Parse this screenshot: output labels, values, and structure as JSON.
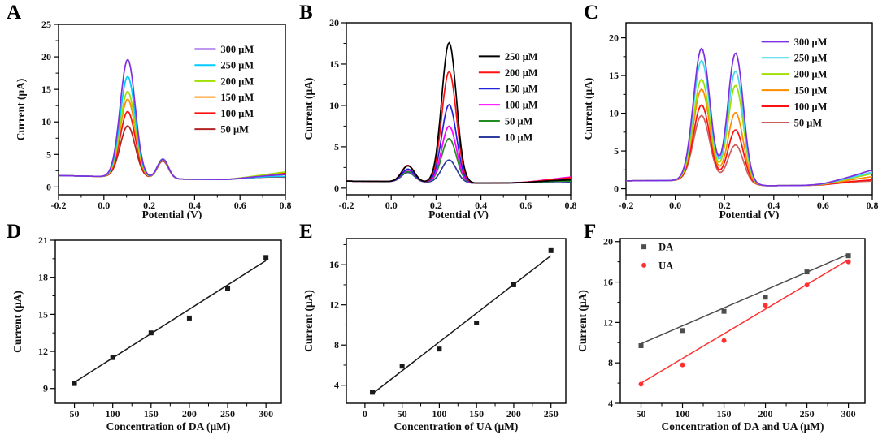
{
  "figure": {
    "background": "#ffffff"
  },
  "chart_data": [
    {
      "panel": "A",
      "type": "line",
      "xlabel": "Potential (V)",
      "ylabel": "Current (μA)",
      "xlim": [
        -0.2,
        0.8
      ],
      "ylim": [
        -1.2,
        25
      ],
      "xticks": [
        -0.2,
        0.0,
        0.2,
        0.4,
        0.6,
        0.8
      ],
      "xtick_labels": [
        "-0.2",
        "0.0",
        "0.2",
        "0.4",
        "0.6",
        "0.8"
      ],
      "yticks": [
        0,
        5,
        10,
        15,
        20,
        25
      ],
      "ytick_labels": [
        "0",
        "5",
        "10",
        "15",
        "20",
        "25"
      ],
      "grid": false,
      "legend": {
        "position": "upper-right",
        "fx": 0.6,
        "fy": 0.145,
        "dy": 0.094,
        "swatch": "line",
        "len": 26
      },
      "baseline": [
        [
          -0.2,
          1.75
        ],
        [
          0.0,
          1.6
        ],
        [
          0.34,
          1.2
        ],
        [
          0.55,
          1.15
        ],
        [
          0.8,
          1.7
        ]
      ],
      "series": [
        {
          "name": "300 μM",
          "color": "#7E2FE0",
          "right_end": 1.9,
          "peaks": [
            {
              "x": 0.105,
              "y": 19.6,
              "w": 0.047
            },
            {
              "x": 0.26,
              "y": 4.25,
              "w": 0.034
            }
          ]
        },
        {
          "name": "250 μM",
          "color": "#00CCFF",
          "right_end": 1.6,
          "peaks": [
            {
              "x": 0.105,
              "y": 17.0,
              "w": 0.047
            },
            {
              "x": 0.26,
              "y": 4.3,
              "w": 0.034
            }
          ]
        },
        {
          "name": "200 μM",
          "color": "#9FE000",
          "right_end": 2.3,
          "peaks": [
            {
              "x": 0.105,
              "y": 14.7,
              "w": 0.047
            },
            {
              "x": 0.26,
              "y": 4.2,
              "w": 0.034
            }
          ]
        },
        {
          "name": "150 μM",
          "color": "#FF8C00",
          "right_end": 1.9,
          "peaks": [
            {
              "x": 0.105,
              "y": 13.5,
              "w": 0.047
            },
            {
              "x": 0.26,
              "y": 4.15,
              "w": 0.034
            }
          ]
        },
        {
          "name": "100 μM",
          "color": "#FF1010",
          "right_end": 2.1,
          "peaks": [
            {
              "x": 0.105,
              "y": 11.6,
              "w": 0.047
            },
            {
              "x": 0.26,
              "y": 4.3,
              "w": 0.034
            }
          ]
        },
        {
          "name": "50 μM",
          "color": "#B22222",
          "right_end": 1.5,
          "peaks": [
            {
              "x": 0.105,
              "y": 9.4,
              "w": 0.047
            },
            {
              "x": 0.26,
              "y": 4.0,
              "w": 0.034
            }
          ]
        }
      ]
    },
    {
      "panel": "B",
      "type": "line",
      "xlabel": "Potential (V)",
      "ylabel": "Current (μA)",
      "xlim": [
        -0.2,
        0.8
      ],
      "ylim": [
        -0.8,
        20
      ],
      "xticks": [
        -0.2,
        0.0,
        0.2,
        0.4,
        0.6,
        0.8
      ],
      "xtick_labels": [
        "-0.2",
        "0.0",
        "0.2",
        "0.4",
        "0.6",
        "0.8"
      ],
      "yticks": [
        0,
        5,
        10,
        15,
        20
      ],
      "ytick_labels": [
        "0",
        "5",
        "10",
        "15",
        "20"
      ],
      "grid": false,
      "legend": {
        "position": "upper-right",
        "fx": 0.59,
        "fy": 0.195,
        "dy": 0.094,
        "swatch": "line",
        "len": 26
      },
      "baseline": [
        [
          -0.2,
          0.85
        ],
        [
          0.0,
          0.8
        ],
        [
          0.36,
          0.6
        ],
        [
          0.6,
          0.65
        ],
        [
          0.8,
          0.9
        ]
      ],
      "series": [
        {
          "name": "250 μM",
          "color": "#000000",
          "right_end": 1.0,
          "peaks": [
            {
              "x": 0.075,
              "y": 2.7,
              "w": 0.04
            },
            {
              "x": 0.258,
              "y": 17.6,
              "w": 0.046
            }
          ]
        },
        {
          "name": "200 μM",
          "color": "#FF1010",
          "right_end": 1.25,
          "peaks": [
            {
              "x": 0.075,
              "y": 2.75,
              "w": 0.04
            },
            {
              "x": 0.258,
              "y": 14.1,
              "w": 0.046
            }
          ]
        },
        {
          "name": "150 μM",
          "color": "#2222DD",
          "right_end": 1.05,
          "peaks": [
            {
              "x": 0.075,
              "y": 2.3,
              "w": 0.04
            },
            {
              "x": 0.258,
              "y": 10.1,
              "w": 0.046
            }
          ]
        },
        {
          "name": "100 μM",
          "color": "#FF00FF",
          "right_end": 1.35,
          "peaks": [
            {
              "x": 0.075,
              "y": 2.2,
              "w": 0.04
            },
            {
              "x": 0.258,
              "y": 7.5,
              "w": 0.046
            }
          ]
        },
        {
          "name": "50 μM",
          "color": "#228B22",
          "right_end": 0.85,
          "peaks": [
            {
              "x": 0.075,
              "y": 2.0,
              "w": 0.04
            },
            {
              "x": 0.258,
              "y": 6.0,
              "w": 0.046
            }
          ]
        },
        {
          "name": "10 μM",
          "color": "#2F3D9E",
          "right_end": 0.75,
          "peaks": [
            {
              "x": 0.075,
              "y": 1.9,
              "w": 0.04
            },
            {
              "x": 0.258,
              "y": 3.4,
              "w": 0.046
            }
          ]
        }
      ]
    },
    {
      "panel": "C",
      "type": "line",
      "xlabel": "Potential (V)",
      "ylabel": "Current (μA)",
      "xlim": [
        -0.2,
        0.8
      ],
      "ylim": [
        -0.8,
        22
      ],
      "xticks": [
        -0.2,
        0.0,
        0.2,
        0.4,
        0.6,
        0.8
      ],
      "xtick_labels": [
        "-0.2",
        "0.0",
        "0.2",
        "0.4",
        "0.6",
        "0.8"
      ],
      "yticks": [
        0,
        5,
        10,
        15,
        20
      ],
      "ytick_labels": [
        "0",
        "5",
        "10",
        "15",
        "20"
      ],
      "grid": false,
      "legend": {
        "position": "upper-right",
        "fx": 0.55,
        "fy": 0.11,
        "dy": 0.094,
        "swatch": "line",
        "len": 34
      },
      "baseline": [
        [
          -0.2,
          1.05
        ],
        [
          0.05,
          1.1
        ],
        [
          0.37,
          0.4
        ],
        [
          0.6,
          0.45
        ],
        [
          0.8,
          0.95
        ]
      ],
      "series": [
        {
          "name": "300 μM",
          "color": "#7E2FE0",
          "right_end": 2.5,
          "peaks": [
            {
              "x": 0.107,
              "y": 18.6,
              "w": 0.047
            },
            {
              "x": 0.245,
              "y": 18.0,
              "w": 0.044
            }
          ]
        },
        {
          "name": "250 μM",
          "color": "#40D8F0",
          "right_end": 2.2,
          "peaks": [
            {
              "x": 0.107,
              "y": 17.0,
              "w": 0.047
            },
            {
              "x": 0.245,
              "y": 15.6,
              "w": 0.044
            }
          ]
        },
        {
          "name": "200 μM",
          "color": "#9FE000",
          "right_end": 2.0,
          "peaks": [
            {
              "x": 0.107,
              "y": 14.5,
              "w": 0.047
            },
            {
              "x": 0.245,
              "y": 13.7,
              "w": 0.044
            }
          ]
        },
        {
          "name": "150 μM",
          "color": "#FF8C00",
          "right_end": 1.6,
          "peaks": [
            {
              "x": 0.107,
              "y": 13.2,
              "w": 0.047
            },
            {
              "x": 0.245,
              "y": 10.1,
              "w": 0.044
            }
          ]
        },
        {
          "name": "100 μM",
          "color": "#FF1010",
          "right_end": 1.15,
          "peaks": [
            {
              "x": 0.107,
              "y": 11.1,
              "w": 0.047
            },
            {
              "x": 0.245,
              "y": 7.8,
              "w": 0.044
            }
          ]
        },
        {
          "name": "50 μM",
          "color": "#CD5C5C",
          "right_end": 1.0,
          "peaks": [
            {
              "x": 0.107,
              "y": 9.7,
              "w": 0.047
            },
            {
              "x": 0.245,
              "y": 5.8,
              "w": 0.044
            }
          ]
        }
      ]
    },
    {
      "panel": "D",
      "type": "scatter",
      "xlabel": "Concentration of DA (μM)",
      "ylabel": "Current (μA)",
      "xlim": [
        25,
        320
      ],
      "ylim": [
        7.8,
        21
      ],
      "xticks": [
        50,
        100,
        150,
        200,
        250,
        300
      ],
      "xtick_labels": [
        "50",
        "100",
        "150",
        "200",
        "250",
        "300"
      ],
      "yticks": [
        9,
        12,
        15,
        18,
        21
      ],
      "ytick_labels": [
        "9",
        "12",
        "15",
        "18",
        "21"
      ],
      "grid": false,
      "legend": null,
      "series": [
        {
          "name": "DA",
          "color": "#1a1a1a",
          "marker": "square",
          "points": [
            [
              50,
              9.4
            ],
            [
              100,
              11.5
            ],
            [
              150,
              13.5
            ],
            [
              200,
              14.7
            ],
            [
              250,
              17.1
            ],
            [
              300,
              19.6
            ]
          ],
          "fit": [
            [
              50,
              9.5
            ],
            [
              300,
              19.35
            ]
          ]
        }
      ]
    },
    {
      "panel": "E",
      "type": "scatter",
      "xlabel": "Concentration of UA (μM)",
      "ylabel": "Current (μA)",
      "xlim": [
        -25,
        270
      ],
      "ylim": [
        2.2,
        18.6
      ],
      "xticks": [
        0,
        50,
        100,
        150,
        200,
        250
      ],
      "xtick_labels": [
        "0",
        "50",
        "100",
        "150",
        "200",
        "250"
      ],
      "yticks": [
        4,
        8,
        12,
        16
      ],
      "ytick_labels": [
        "4",
        "8",
        "12",
        "16"
      ],
      "grid": false,
      "legend": null,
      "series": [
        {
          "name": "UA",
          "color": "#1a1a1a",
          "marker": "square",
          "points": [
            [
              10,
              3.3
            ],
            [
              50,
              5.9
            ],
            [
              100,
              7.6
            ],
            [
              150,
              10.2
            ],
            [
              200,
              14.0
            ],
            [
              250,
              17.4
            ]
          ],
          "fit": [
            [
              10,
              3.15
            ],
            [
              250,
              16.9
            ]
          ]
        }
      ]
    },
    {
      "panel": "F",
      "type": "scatter",
      "xlabel": "Concentration of DA and UA (μM)",
      "ylabel": "Current (μA)",
      "xlim": [
        25,
        320
      ],
      "ylim": [
        4,
        20.3
      ],
      "xticks": [
        50,
        100,
        150,
        200,
        250,
        300
      ],
      "xtick_labels": [
        "50",
        "100",
        "150",
        "200",
        "250",
        "300"
      ],
      "yticks": [
        4,
        8,
        12,
        16,
        20
      ],
      "ytick_labels": [
        "4",
        "8",
        "12",
        "16",
        "20"
      ],
      "grid": false,
      "legend": {
        "position": "upper-left",
        "fx": 0.07,
        "fy": 0.05,
        "dy": 0.112,
        "swatch": "marker"
      },
      "series": [
        {
          "name": "DA",
          "color": "#4D4D4D",
          "marker": "square",
          "points": [
            [
              50,
              9.7
            ],
            [
              100,
              11.2
            ],
            [
              150,
              13.1
            ],
            [
              200,
              14.5
            ],
            [
              250,
              17.0
            ],
            [
              300,
              18.6
            ]
          ],
          "fit": [
            [
              50,
              9.9
            ],
            [
              300,
              18.75
            ]
          ]
        },
        {
          "name": "UA",
          "color": "#FF3030",
          "marker": "circle",
          "points": [
            [
              50,
              5.9
            ],
            [
              100,
              7.8
            ],
            [
              150,
              10.2
            ],
            [
              200,
              13.7
            ],
            [
              250,
              15.7
            ],
            [
              300,
              18.0
            ]
          ],
          "fit": [
            [
              50,
              6.0
            ],
            [
              300,
              18.2
            ]
          ]
        }
      ]
    }
  ]
}
